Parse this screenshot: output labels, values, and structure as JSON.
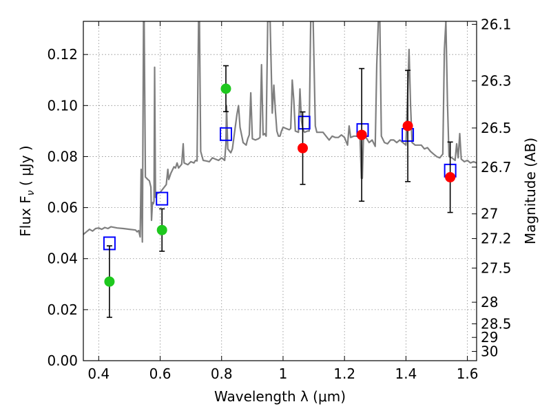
{
  "chart_data": {
    "type": "scatter",
    "xlabel": "Wavelength  λ (μm)",
    "ylabel": "Flux  F",
    "ylabel_sub": "ν",
    "ylabel_unit": " ( μJy )",
    "y2label": "Magnitude (AB)",
    "xlim": [
      0.35,
      1.63
    ],
    "ylim": [
      0.0,
      0.133
    ],
    "grid": true,
    "x_ticks": [
      0.4,
      0.6,
      0.8,
      1.0,
      1.2,
      1.4,
      1.6
    ],
    "x_tick_labels": [
      "0.4",
      "0.6",
      "0.8",
      "1",
      "1.2",
      "1.4",
      "1.6"
    ],
    "y_ticks": [
      0.0,
      0.02,
      0.04,
      0.06,
      0.08,
      0.1,
      0.12
    ],
    "y_tick_labels": [
      "0.00",
      "0.02",
      "0.04",
      "0.06",
      "0.08",
      "0.10",
      "0.12"
    ],
    "y2_ticks": [
      "26.1",
      "26.3",
      "26.5",
      "26.7",
      "27",
      "27.2",
      "27.5",
      "28",
      "28.5",
      "29",
      "30"
    ],
    "colors": {
      "spectrum": "#7f7f7f",
      "model": "#0000ff",
      "green": "#1ec81e",
      "red": "#ff0000",
      "errorbar": "#000000",
      "grid": "#888888"
    },
    "series": [
      {
        "marker": "square-open",
        "color": "#0000ff",
        "points": [
          {
            "x": 0.435,
            "y": 0.046
          },
          {
            "x": 0.606,
            "y": 0.0635
          },
          {
            "x": 0.814,
            "y": 0.0888
          },
          {
            "x": 1.069,
            "y": 0.0933
          },
          {
            "x": 1.259,
            "y": 0.0904
          },
          {
            "x": 1.406,
            "y": 0.0885
          },
          {
            "x": 1.544,
            "y": 0.0745
          }
        ]
      },
      {
        "marker": "circle",
        "color": "#1ec81e",
        "points": [
          {
            "x": 0.435,
            "y": 0.031,
            "yerr": 0.014
          },
          {
            "x": 0.606,
            "y": 0.0512,
            "yerr": 0.0083
          },
          {
            "x": 0.814,
            "y": 0.1066,
            "yerr": 0.009
          }
        ]
      },
      {
        "marker": "circle",
        "color": "#ff0000",
        "points": [
          {
            "x": 1.064,
            "y": 0.0833,
            "yerr": 0.0142
          },
          {
            "x": 1.256,
            "y": 0.0885,
            "yerr": 0.026
          },
          {
            "x": 1.406,
            "y": 0.092,
            "yerr": 0.0218
          },
          {
            "x": 1.544,
            "y": 0.0719,
            "yerr": 0.0138
          }
        ]
      }
    ],
    "spectrum": [
      [
        0.35,
        0.0495
      ],
      [
        0.36,
        0.0505
      ],
      [
        0.37,
        0.0515
      ],
      [
        0.38,
        0.0508
      ],
      [
        0.39,
        0.0518
      ],
      [
        0.4,
        0.052
      ],
      [
        0.41,
        0.0515
      ],
      [
        0.42,
        0.0522
      ],
      [
        0.43,
        0.0518
      ],
      [
        0.44,
        0.0525
      ],
      [
        0.46,
        0.052
      ],
      [
        0.48,
        0.0518
      ],
      [
        0.5,
        0.0515
      ],
      [
        0.52,
        0.0512
      ],
      [
        0.525,
        0.0505
      ],
      [
        0.53,
        0.051
      ],
      [
        0.535,
        0.0485
      ],
      [
        0.538,
        0.075
      ],
      [
        0.542,
        0.0465
      ],
      [
        0.546,
        0.133
      ],
      [
        0.548,
        0.133
      ],
      [
        0.552,
        0.072
      ],
      [
        0.56,
        0.071
      ],
      [
        0.565,
        0.0705
      ],
      [
        0.57,
        0.068
      ],
      [
        0.572,
        0.055
      ],
      [
        0.575,
        0.062
      ],
      [
        0.578,
        0.0615
      ],
      [
        0.58,
        0.0625
      ],
      [
        0.582,
        0.115
      ],
      [
        0.585,
        0.064
      ],
      [
        0.59,
        0.0655
      ],
      [
        0.6,
        0.066
      ],
      [
        0.61,
        0.0675
      ],
      [
        0.62,
        0.069
      ],
      [
        0.625,
        0.075
      ],
      [
        0.628,
        0.071
      ],
      [
        0.635,
        0.0735
      ],
      [
        0.645,
        0.076
      ],
      [
        0.65,
        0.0755
      ],
      [
        0.655,
        0.0775
      ],
      [
        0.66,
        0.0755
      ],
      [
        0.67,
        0.077
      ],
      [
        0.675,
        0.085
      ],
      [
        0.678,
        0.0775
      ],
      [
        0.69,
        0.0768
      ],
      [
        0.7,
        0.078
      ],
      [
        0.71,
        0.0775
      ],
      [
        0.715,
        0.0785
      ],
      [
        0.72,
        0.0783
      ],
      [
        0.725,
        0.133
      ],
      [
        0.728,
        0.133
      ],
      [
        0.732,
        0.082
      ],
      [
        0.74,
        0.0785
      ],
      [
        0.75,
        0.0783
      ],
      [
        0.76,
        0.078
      ],
      [
        0.77,
        0.0795
      ],
      [
        0.78,
        0.079
      ],
      [
        0.79,
        0.0785
      ],
      [
        0.8,
        0.0795
      ],
      [
        0.81,
        0.0785
      ],
      [
        0.814,
        0.085
      ],
      [
        0.816,
        0.1
      ],
      [
        0.82,
        0.083
      ],
      [
        0.83,
        0.0815
      ],
      [
        0.835,
        0.083
      ],
      [
        0.84,
        0.0875
      ],
      [
        0.85,
        0.0965
      ],
      [
        0.855,
        0.1
      ],
      [
        0.86,
        0.0915
      ],
      [
        0.87,
        0.0855
      ],
      [
        0.88,
        0.0845
      ],
      [
        0.885,
        0.087
      ],
      [
        0.89,
        0.0885
      ],
      [
        0.895,
        0.105
      ],
      [
        0.9,
        0.087
      ],
      [
        0.91,
        0.0865
      ],
      [
        0.92,
        0.087
      ],
      [
        0.925,
        0.0875
      ],
      [
        0.93,
        0.116
      ],
      [
        0.935,
        0.0885
      ],
      [
        0.94,
        0.089
      ],
      [
        0.945,
        0.088
      ],
      [
        0.95,
        0.133
      ],
      [
        0.958,
        0.133
      ],
      [
        0.965,
        0.097
      ],
      [
        0.97,
        0.108
      ],
      [
        0.975,
        0.098
      ],
      [
        0.98,
        0.09
      ],
      [
        0.985,
        0.088
      ],
      [
        0.99,
        0.088
      ],
      [
        0.995,
        0.09
      ],
      [
        1.0,
        0.0915
      ],
      [
        1.01,
        0.091
      ],
      [
        1.02,
        0.0905
      ],
      [
        1.025,
        0.091
      ],
      [
        1.028,
        0.1025
      ],
      [
        1.03,
        0.11
      ],
      [
        1.035,
        0.102
      ],
      [
        1.04,
        0.09
      ],
      [
        1.05,
        0.0895
      ],
      [
        1.055,
        0.1065
      ],
      [
        1.06,
        0.094
      ],
      [
        1.065,
        0.0905
      ],
      [
        1.07,
        0.0895
      ],
      [
        1.08,
        0.09
      ],
      [
        1.085,
        0.09
      ],
      [
        1.09,
        0.133
      ],
      [
        1.098,
        0.133
      ],
      [
        1.105,
        0.092
      ],
      [
        1.11,
        0.0895
      ],
      [
        1.13,
        0.0895
      ],
      [
        1.14,
        0.088
      ],
      [
        1.15,
        0.0865
      ],
      [
        1.16,
        0.088
      ],
      [
        1.17,
        0.0875
      ],
      [
        1.18,
        0.0875
      ],
      [
        1.19,
        0.0885
      ],
      [
        1.2,
        0.0875
      ],
      [
        1.21,
        0.0845
      ],
      [
        1.215,
        0.092
      ],
      [
        1.22,
        0.0875
      ],
      [
        1.23,
        0.088
      ],
      [
        1.24,
        0.088
      ],
      [
        1.25,
        0.0895
      ],
      [
        1.255,
        0.0715
      ],
      [
        1.258,
        0.0715
      ],
      [
        1.262,
        0.0885
      ],
      [
        1.27,
        0.0875
      ],
      [
        1.28,
        0.0855
      ],
      [
        1.29,
        0.0865
      ],
      [
        1.3,
        0.084
      ],
      [
        1.305,
        0.116
      ],
      [
        1.31,
        0.133
      ],
      [
        1.315,
        0.133
      ],
      [
        1.32,
        0.088
      ],
      [
        1.33,
        0.0855
      ],
      [
        1.34,
        0.085
      ],
      [
        1.35,
        0.0865
      ],
      [
        1.36,
        0.0865
      ],
      [
        1.37,
        0.0855
      ],
      [
        1.38,
        0.0865
      ],
      [
        1.39,
        0.0855
      ],
      [
        1.4,
        0.0845
      ],
      [
        1.405,
        0.102
      ],
      [
        1.41,
        0.122
      ],
      [
        1.415,
        0.1
      ],
      [
        1.42,
        0.0855
      ],
      [
        1.43,
        0.0845
      ],
      [
        1.44,
        0.0845
      ],
      [
        1.45,
        0.0845
      ],
      [
        1.46,
        0.083
      ],
      [
        1.47,
        0.0835
      ],
      [
        1.48,
        0.082
      ],
      [
        1.49,
        0.081
      ],
      [
        1.5,
        0.08
      ],
      [
        1.51,
        0.0795
      ],
      [
        1.52,
        0.081
      ],
      [
        1.525,
        0.122
      ],
      [
        1.53,
        0.133
      ],
      [
        1.535,
        0.102
      ],
      [
        1.54,
        0.08
      ],
      [
        1.55,
        0.0795
      ],
      [
        1.56,
        0.0785
      ],
      [
        1.565,
        0.085
      ],
      [
        1.57,
        0.0795
      ],
      [
        1.575,
        0.089
      ],
      [
        1.58,
        0.079
      ],
      [
        1.59,
        0.078
      ],
      [
        1.6,
        0.0785
      ],
      [
        1.61,
        0.0775
      ],
      [
        1.62,
        0.078
      ],
      [
        1.63,
        0.0775
      ]
    ]
  }
}
